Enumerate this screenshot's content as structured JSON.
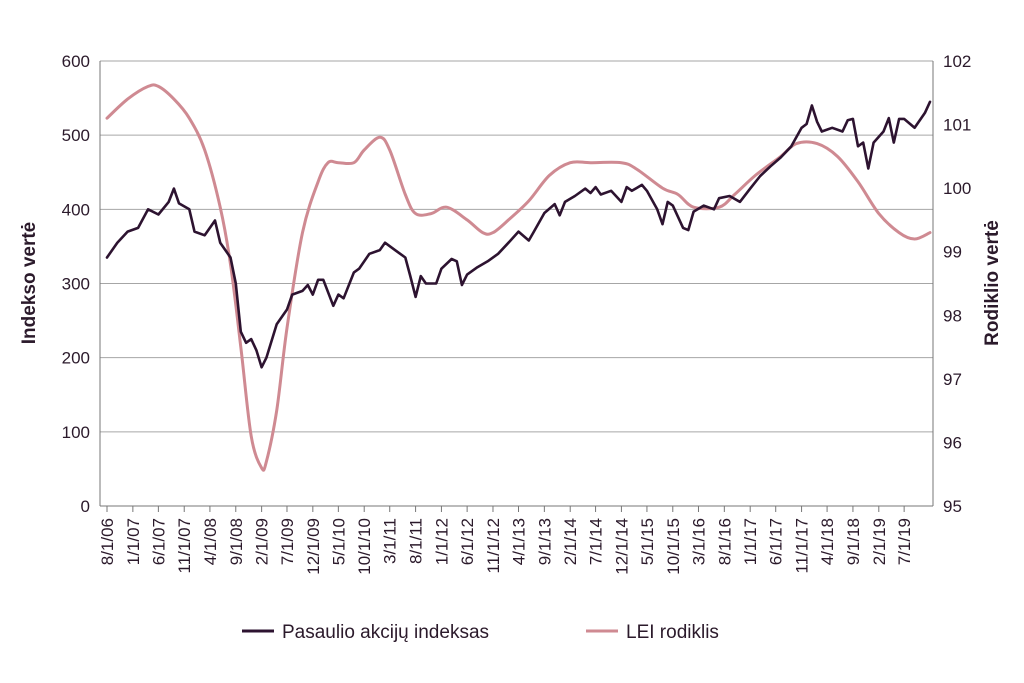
{
  "chart_data": {
    "type": "line",
    "ylabel": "Indekso vertė",
    "y2label": "Rodiklio vertė",
    "ylim": [
      0,
      600
    ],
    "yticks": [
      "0",
      "100",
      "200",
      "300",
      "400",
      "500",
      "600"
    ],
    "y2lim": [
      95,
      102
    ],
    "y2ticks": [
      "95",
      "96",
      "97",
      "98",
      "99",
      "100",
      "101",
      "102"
    ],
    "grid": true,
    "legend_position": "bottom",
    "x_tick_labels": [
      "8/1/06",
      "1/1/07",
      "6/1/07",
      "11/1/07",
      "4/1/08",
      "9/1/08",
      "2/1/09",
      "7/1/09",
      "12/1/09",
      "5/1/10",
      "10/1/10",
      "3/1/11",
      "8/1/11",
      "1/1/12",
      "6/1/12",
      "11/1/12",
      "4/1/13",
      "9/1/13",
      "2/1/14",
      "7/1/14",
      "12/1/14",
      "5/1/15",
      "10/1/15",
      "3/1/16",
      "8/1/16",
      "1/1/17",
      "6/1/17",
      "11/1/17",
      "4/1/18",
      "9/1/18",
      "2/1/19",
      "7/1/19"
    ],
    "series": [
      {
        "name": "Pasaulio akcijų indeksas",
        "axis": "left",
        "color": "#2d1330",
        "points": [
          [
            "2006-08-01",
            335
          ],
          [
            "2006-10-01",
            355
          ],
          [
            "2006-12-01",
            370
          ],
          [
            "2007-02-01",
            375
          ],
          [
            "2007-04-01",
            400
          ],
          [
            "2007-06-01",
            393
          ],
          [
            "2007-08-01",
            410
          ],
          [
            "2007-09-01",
            428
          ],
          [
            "2007-10-01",
            408
          ],
          [
            "2007-12-01",
            400
          ],
          [
            "2008-01-01",
            370
          ],
          [
            "2008-03-01",
            365
          ],
          [
            "2008-05-01",
            385
          ],
          [
            "2008-06-01",
            355
          ],
          [
            "2008-08-01",
            335
          ],
          [
            "2008-09-01",
            300
          ],
          [
            "2008-10-01",
            235
          ],
          [
            "2008-11-01",
            220
          ],
          [
            "2008-12-01",
            225
          ],
          [
            "2009-01-01",
            210
          ],
          [
            "2009-02-01",
            187
          ],
          [
            "2009-03-01",
            200
          ],
          [
            "2009-05-01",
            245
          ],
          [
            "2009-07-01",
            265
          ],
          [
            "2009-08-01",
            285
          ],
          [
            "2009-10-01",
            290
          ],
          [
            "2009-11-01",
            298
          ],
          [
            "2009-12-01",
            285
          ],
          [
            "2010-01-01",
            305
          ],
          [
            "2010-02-01",
            305
          ],
          [
            "2010-04-01",
            270
          ],
          [
            "2010-05-01",
            285
          ],
          [
            "2010-06-01",
            280
          ],
          [
            "2010-08-01",
            315
          ],
          [
            "2010-09-01",
            320
          ],
          [
            "2010-11-01",
            340
          ],
          [
            "2011-01-01",
            345
          ],
          [
            "2011-02-01",
            355
          ],
          [
            "2011-04-01",
            345
          ],
          [
            "2011-06-01",
            335
          ],
          [
            "2011-07-01",
            310
          ],
          [
            "2011-08-01",
            282
          ],
          [
            "2011-09-01",
            310
          ],
          [
            "2011-10-01",
            300
          ],
          [
            "2011-12-01",
            300
          ],
          [
            "2012-01-01",
            320
          ],
          [
            "2012-03-01",
            333
          ],
          [
            "2012-04-01",
            330
          ],
          [
            "2012-05-01",
            298
          ],
          [
            "2012-06-01",
            312
          ],
          [
            "2012-08-01",
            322
          ],
          [
            "2012-10-01",
            330
          ],
          [
            "2012-12-01",
            340
          ],
          [
            "2013-02-01",
            355
          ],
          [
            "2013-04-01",
            370
          ],
          [
            "2013-06-01",
            358
          ],
          [
            "2013-07-01",
            370
          ],
          [
            "2013-09-01",
            395
          ],
          [
            "2013-11-01",
            407
          ],
          [
            "2013-12-01",
            392
          ],
          [
            "2014-01-01",
            410
          ],
          [
            "2014-03-01",
            418
          ],
          [
            "2014-05-01",
            428
          ],
          [
            "2014-06-01",
            422
          ],
          [
            "2014-07-01",
            430
          ],
          [
            "2014-08-01",
            420
          ],
          [
            "2014-10-01",
            425
          ],
          [
            "2014-12-01",
            410
          ],
          [
            "2015-01-01",
            430
          ],
          [
            "2015-02-01",
            425
          ],
          [
            "2015-04-01",
            433
          ],
          [
            "2015-05-01",
            425
          ],
          [
            "2015-07-01",
            400
          ],
          [
            "2015-08-01",
            380
          ],
          [
            "2015-09-01",
            410
          ],
          [
            "2015-10-01",
            405
          ],
          [
            "2015-12-01",
            375
          ],
          [
            "2016-01-01",
            372
          ],
          [
            "2016-02-01",
            397
          ],
          [
            "2016-04-01",
            405
          ],
          [
            "2016-06-01",
            400
          ],
          [
            "2016-07-01",
            415
          ],
          [
            "2016-09-01",
            418
          ],
          [
            "2016-11-01",
            410
          ],
          [
            "2017-01-01",
            428
          ],
          [
            "2017-03-01",
            445
          ],
          [
            "2017-05-01",
            458
          ],
          [
            "2017-07-01",
            470
          ],
          [
            "2017-09-01",
            485
          ],
          [
            "2017-11-01",
            510
          ],
          [
            "2017-12-01",
            515
          ],
          [
            "2018-01-01",
            540
          ],
          [
            "2018-02-01",
            518
          ],
          [
            "2018-03-01",
            505
          ],
          [
            "2018-05-01",
            510
          ],
          [
            "2018-07-01",
            505
          ],
          [
            "2018-08-01",
            520
          ],
          [
            "2018-09-01",
            522
          ],
          [
            "2018-10-01",
            485
          ],
          [
            "2018-11-01",
            490
          ],
          [
            "2018-12-01",
            455
          ],
          [
            "2019-01-01",
            490
          ],
          [
            "2019-03-01",
            505
          ],
          [
            "2019-04-01",
            523
          ],
          [
            "2019-05-01",
            490
          ],
          [
            "2019-06-01",
            522
          ],
          [
            "2019-07-01",
            522
          ],
          [
            "2019-09-01",
            510
          ],
          [
            "2019-11-01",
            530
          ],
          [
            "2019-12-01",
            545
          ]
        ]
      },
      {
        "name": "LEI rodiklis",
        "axis": "right",
        "color": "#cf8a92",
        "points": [
          [
            "2006-08-01",
            101.1
          ],
          [
            "2006-12-01",
            101.4
          ],
          [
            "2007-04-01",
            101.6
          ],
          [
            "2007-06-01",
            101.6
          ],
          [
            "2007-09-01",
            101.4
          ],
          [
            "2007-12-01",
            101.1
          ],
          [
            "2008-03-01",
            100.6
          ],
          [
            "2008-06-01",
            99.7
          ],
          [
            "2008-08-01",
            98.8
          ],
          [
            "2008-10-01",
            97.5
          ],
          [
            "2008-12-01",
            96.1
          ],
          [
            "2009-02-01",
            95.6
          ],
          [
            "2009-03-01",
            95.7
          ],
          [
            "2009-05-01",
            96.5
          ],
          [
            "2009-07-01",
            97.8
          ],
          [
            "2009-10-01",
            99.3
          ],
          [
            "2010-01-01",
            100.1
          ],
          [
            "2010-03-01",
            100.4
          ],
          [
            "2010-05-01",
            100.4
          ],
          [
            "2010-08-01",
            100.4
          ],
          [
            "2010-10-01",
            100.6
          ],
          [
            "2011-01-01",
            100.8
          ],
          [
            "2011-03-01",
            100.6
          ],
          [
            "2011-06-01",
            99.9
          ],
          [
            "2011-08-01",
            99.6
          ],
          [
            "2011-11-01",
            99.6
          ],
          [
            "2012-02-01",
            99.7
          ],
          [
            "2012-06-01",
            99.5
          ],
          [
            "2012-09-01",
            99.3
          ],
          [
            "2012-11-01",
            99.3
          ],
          [
            "2013-02-01",
            99.5
          ],
          [
            "2013-06-01",
            99.8
          ],
          [
            "2013-10-01",
            100.2
          ],
          [
            "2014-02-01",
            100.4
          ],
          [
            "2014-06-01",
            100.4
          ],
          [
            "2014-12-01",
            100.4
          ],
          [
            "2015-03-01",
            100.3
          ],
          [
            "2015-08-01",
            100.0
          ],
          [
            "2015-11-01",
            99.9
          ],
          [
            "2016-02-01",
            99.7
          ],
          [
            "2016-07-01",
            99.7
          ],
          [
            "2016-10-01",
            99.9
          ],
          [
            "2017-02-01",
            100.2
          ],
          [
            "2017-07-01",
            100.5
          ],
          [
            "2017-10-01",
            100.7
          ],
          [
            "2018-02-01",
            100.7
          ],
          [
            "2018-06-01",
            100.5
          ],
          [
            "2018-10-01",
            100.1
          ],
          [
            "2019-02-01",
            99.6
          ],
          [
            "2019-06-01",
            99.3
          ],
          [
            "2019-09-01",
            99.2
          ],
          [
            "2019-12-01",
            99.3
          ]
        ]
      }
    ]
  }
}
